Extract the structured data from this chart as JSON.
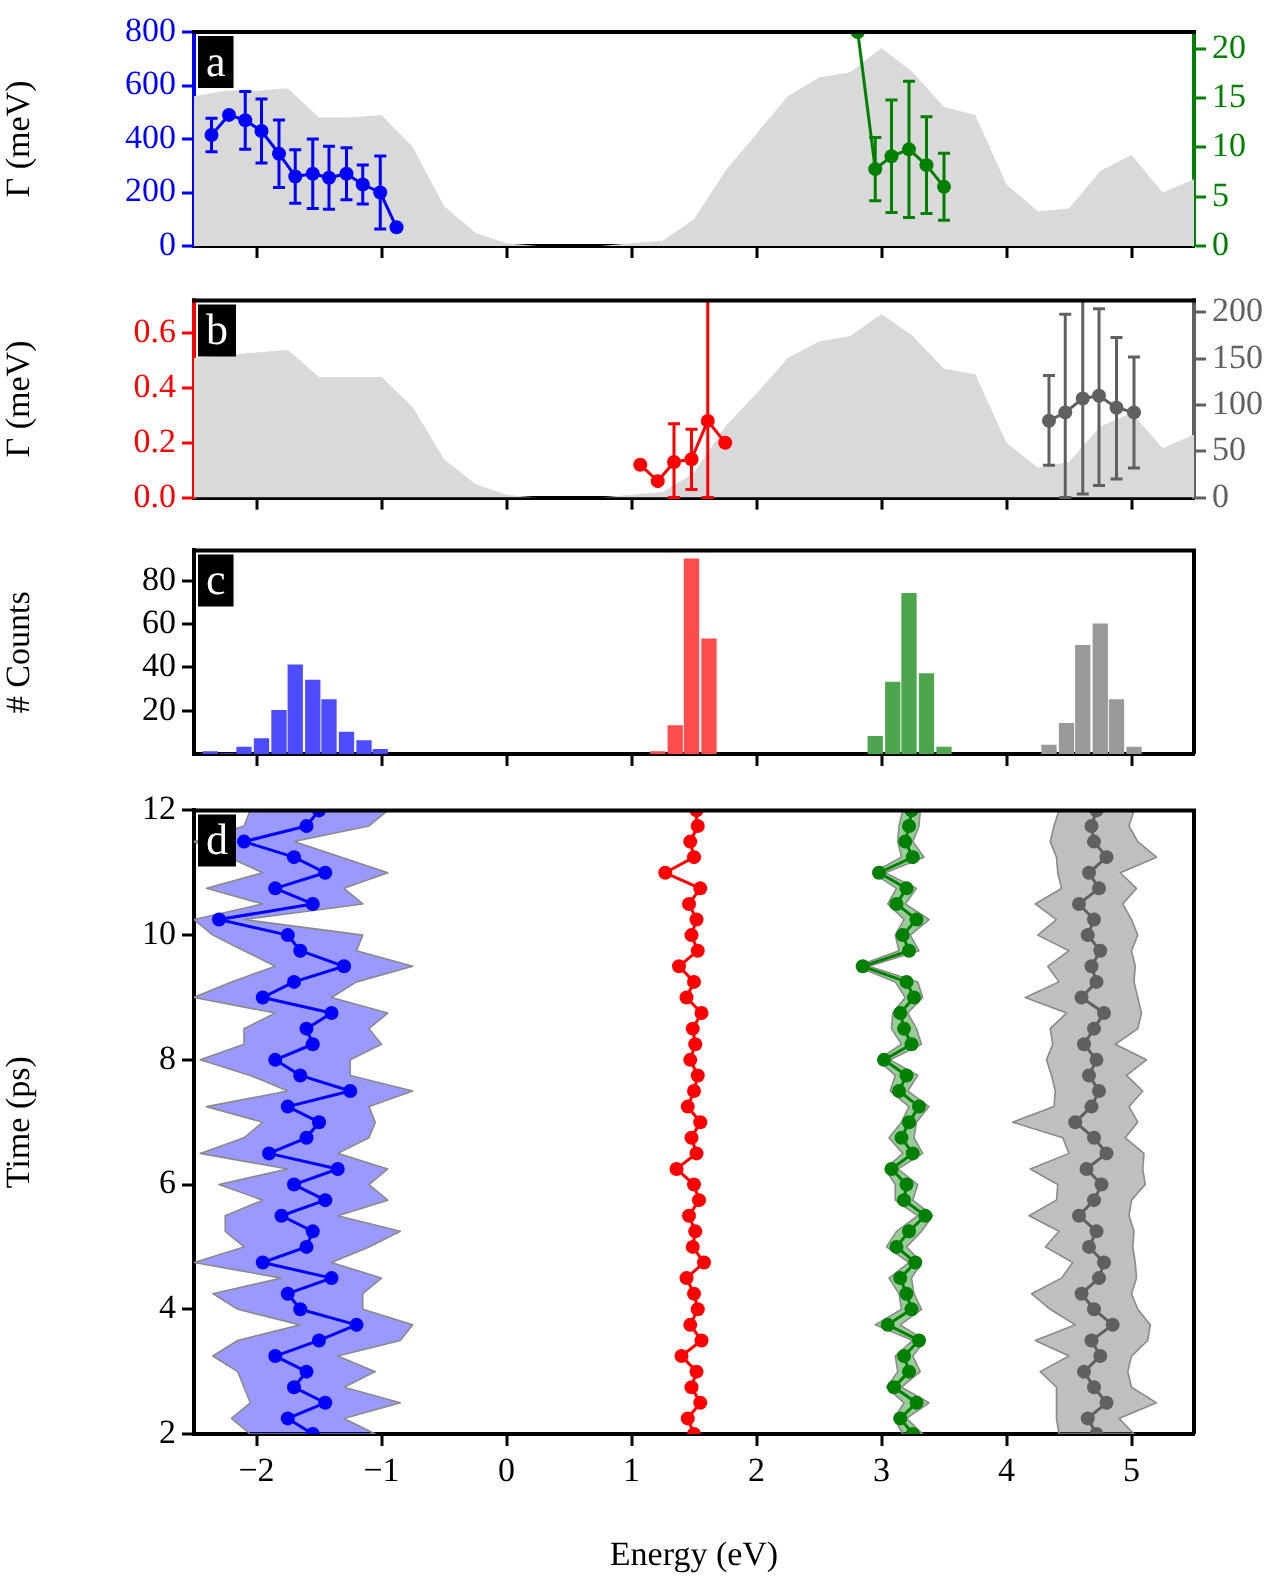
{
  "chart_data": [
    {
      "type": "line",
      "ylabel": "Γ (meV)",
      "annotations": [
        "a"
      ],
      "xlim": [
        -2.5,
        5.5
      ],
      "xticks": [
        -2,
        -1,
        0,
        1,
        2,
        3,
        4,
        5
      ],
      "ylim": [
        0,
        800
      ],
      "yticks": [
        0,
        200,
        400,
        600,
        800
      ],
      "y2lim": [
        0,
        21.7
      ],
      "y2ticks": [
        0,
        5,
        10,
        15,
        20
      ],
      "tick_labels": "y",
      "series": [
        {
          "type": "area",
          "color": "#d9d9d9",
          "x": [
            -2.5,
            -2.25,
            -2,
            -1.75,
            -1.5,
            -1.25,
            -1,
            -0.75,
            -0.5,
            -0.25,
            0,
            0.25,
            0.5,
            0.75,
            1,
            1.25,
            1.5,
            1.75,
            2,
            2.25,
            2.5,
            2.75,
            3,
            3.25,
            3.5,
            3.75,
            4,
            4.25,
            4.5,
            4.75,
            5,
            5.25,
            5.5
          ],
          "values": [
            560,
            580,
            580,
            590,
            480,
            480,
            490,
            370,
            150,
            50,
            10,
            0,
            0,
            0,
            10,
            20,
            100,
            280,
            420,
            560,
            630,
            650,
            740,
            650,
            520,
            490,
            230,
            130,
            140,
            280,
            340,
            200,
            250
          ]
        },
        {
          "color": "#0000ff",
          "marker": "circle",
          "x": [
            -2.36,
            -2.22,
            -2.09,
            -1.96,
            -1.82,
            -1.69,
            -1.55,
            -1.42,
            -1.28,
            -1.15,
            -1.01,
            -0.88
          ],
          "values": [
            415,
            490,
            470,
            430,
            345,
            260,
            270,
            255,
            270,
            230,
            200,
            70
          ],
          "errors": [
            63,
            null,
            108,
            120,
            126,
            100,
            130,
            118,
            97,
            73,
            136,
            null
          ]
        },
        {
          "color": "#008000",
          "marker": "circle",
          "axis": "y2",
          "x": [
            2.81,
            2.95,
            3.08,
            3.22,
            3.36,
            3.5
          ],
          "values": [
            21.7,
            7.8,
            9.1,
            9.8,
            8.2,
            6.0
          ],
          "errors": [
            null,
            3.2,
            5.7,
            6.9,
            4.9,
            3.4
          ]
        }
      ]
    },
    {
      "type": "line",
      "ylabel": "Γ (meV)",
      "annotations": [
        "b"
      ],
      "xlim": [
        -2.5,
        5.5
      ],
      "xticks": [
        -2,
        -1,
        0,
        1,
        2,
        3,
        4,
        5
      ],
      "ylim": [
        0,
        0.72
      ],
      "yticks": [
        {
          "value": 0,
          "label": "0.0"
        },
        {
          "value": 0.2,
          "label": "0.2"
        },
        {
          "value": 0.4,
          "label": "0.4"
        },
        {
          "value": 0.6,
          "label": "0.6"
        }
      ],
      "y2lim": [
        0,
        213
      ],
      "y2ticks": [
        0,
        50,
        100,
        150,
        200
      ],
      "tick_labels": "y",
      "series": [
        {
          "type": "area",
          "color": "#d9d9d9",
          "x": [
            -2.5,
            -2,
            -1.75,
            -1.5,
            -1.25,
            -1,
            -0.75,
            -0.5,
            -0.25,
            0,
            0.25,
            0.5,
            0.75,
            1,
            1.25,
            1.5,
            1.75,
            2,
            2.25,
            2.5,
            2.75,
            3,
            3.25,
            3.5,
            3.75,
            4,
            4.25,
            4.5,
            4.75,
            5,
            5.25,
            5.5
          ],
          "values": [
            0.51,
            0.53,
            0.54,
            0.44,
            0.44,
            0.44,
            0.33,
            0.14,
            0.05,
            0.01,
            0,
            0,
            0,
            0.01,
            0.02,
            0.09,
            0.26,
            0.38,
            0.51,
            0.57,
            0.59,
            0.67,
            0.59,
            0.47,
            0.45,
            0.2,
            0.11,
            0.13,
            0.26,
            0.31,
            0.18,
            0.23
          ]
        },
        {
          "color": "#ff0000",
          "marker": "circle",
          "x": [
            1.07,
            1.21,
            1.34,
            1.48,
            1.61,
            1.75
          ],
          "values": [
            0.12,
            0.06,
            0.13,
            0.14,
            0.28,
            0.2
          ],
          "errors": [
            null,
            null,
            [
              0,
              0.27
            ],
            [
              0.03,
              0.25
            ],
            [
              0,
              0.72
            ],
            null
          ]
        },
        {
          "color": "#606060",
          "marker": "circle",
          "axis": "y2",
          "x": [
            4.34,
            4.47,
            4.61,
            4.74,
            4.88,
            5.02
          ],
          "values": [
            83,
            92,
            107,
            110,
            97,
            92
          ],
          "errors": [
            [
              35,
              132
            ],
            [
              0,
              198
            ],
            [
              4,
              213
            ],
            [
              13,
              204
            ],
            [
              20,
              173
            ],
            [
              32,
              152
            ]
          ]
        }
      ]
    },
    {
      "type": "bar",
      "ylabel": "# Counts",
      "annotations": [
        "c"
      ],
      "xlim": [
        -2.5,
        5.5
      ],
      "xticks": [
        -2,
        -1,
        0,
        1,
        2,
        3,
        4,
        5
      ],
      "ylim": [
        0,
        94
      ],
      "yticks": [
        20,
        40,
        60,
        80
      ],
      "tick_labels": "y",
      "series": [
        {
          "color": "#4d4dff",
          "x": [
            -2.37,
            -2.23,
            -2.1,
            -1.96,
            -1.82,
            -1.69,
            -1.55,
            -1.42,
            -1.28,
            -1.14,
            -1.01
          ],
          "values": [
            1,
            0,
            3,
            7,
            20,
            41,
            34,
            25,
            10,
            6,
            2
          ]
        },
        {
          "color": "#ff4d4d",
          "x": [
            1.21,
            1.35,
            1.48,
            1.62
          ],
          "values": [
            1,
            13,
            90,
            53
          ]
        },
        {
          "color": "#4da64d",
          "x": [
            2.95,
            3.09,
            3.22,
            3.36,
            3.5
          ],
          "values": [
            8,
            33,
            74,
            37,
            3
          ]
        },
        {
          "color": "#999999",
          "x": [
            4.34,
            4.48,
            4.61,
            4.75,
            4.88,
            5.02
          ],
          "values": [
            4,
            14,
            50,
            60,
            25,
            3
          ]
        }
      ]
    },
    {
      "type": "line",
      "orientation": "horizontal",
      "xlabel": "Energy (eV)",
      "ylabel": "Time (ps)",
      "annotations": [
        "d"
      ],
      "xlim": [
        -2.5,
        5.5
      ],
      "xticks": [
        {
          "value": -2,
          "label": "−2"
        },
        {
          "value": -1,
          "label": "−1"
        },
        0,
        1,
        2,
        3,
        4,
        5
      ],
      "ylim": [
        2,
        12
      ],
      "yticks": [
        2,
        4,
        6,
        8,
        10,
        12
      ],
      "marker": "circle",
      "series": [
        {
          "color": "#0000ff",
          "x": [
            2,
            2.25,
            2.5,
            2.75,
            3,
            3.25,
            3.5,
            3.75,
            4,
            4.25,
            4.5,
            4.75,
            5,
            5.25,
            5.5,
            5.75,
            6,
            6.25,
            6.5,
            6.75,
            7,
            7.25,
            7.5,
            7.75,
            8,
            8.25,
            8.5,
            8.75,
            9,
            9.25,
            9.5,
            9.75,
            10,
            10.25,
            10.5,
            10.75,
            11,
            11.25,
            11.5,
            11.75,
            12
          ],
          "values": [
            -1.55,
            -1.75,
            -1.45,
            -1.7,
            -1.6,
            -1.85,
            -1.5,
            -1.2,
            -1.65,
            -1.75,
            -1.4,
            -1.95,
            -1.6,
            -1.55,
            -1.8,
            -1.45,
            -1.7,
            -1.35,
            -1.9,
            -1.6,
            -1.5,
            -1.75,
            -1.25,
            -1.65,
            -1.85,
            -1.55,
            -1.6,
            -1.4,
            -1.95,
            -1.7,
            -1.3,
            -1.65,
            -1.75,
            -2.3,
            -1.55,
            -1.85,
            -1.45,
            -1.7,
            -2.1,
            -1.6,
            -1.5
          ],
          "lower": [
            -2.05,
            -2.2,
            -2.05,
            -2.1,
            -2.15,
            -2.35,
            -2.15,
            -1.65,
            -2.15,
            -2.35,
            -1.8,
            -2.5,
            -2.1,
            -2.25,
            -2.25,
            -1.95,
            -2.3,
            -1.75,
            -2.45,
            -2.1,
            -1.95,
            -2.4,
            -1.75,
            -2.05,
            -2.45,
            -2.1,
            -2.1,
            -1.85,
            -2.5,
            -2.2,
            -1.85,
            -2.1,
            -2.35,
            -2.5,
            -1.95,
            -2.4,
            -1.95,
            null,
            -2.5,
            -2.1,
            -2.05
          ],
          "upper": [
            -1.05,
            -1.3,
            -0.85,
            -1.3,
            -1.05,
            -1.35,
            -0.85,
            -0.75,
            -1.15,
            -1.15,
            -1.0,
            -1.4,
            -1.1,
            -0.85,
            -1.35,
            -0.95,
            -1.1,
            -0.95,
            -1.35,
            -1.1,
            -1.05,
            -1.1,
            -0.75,
            -1.25,
            -1.25,
            -1.0,
            -1.1,
            -0.95,
            -1.4,
            -1.2,
            -0.75,
            -1.2,
            -1.15,
            -2.1,
            -1.15,
            -1.3,
            -0.95,
            null,
            -1.7,
            -1.1,
            -0.95
          ]
        },
        {
          "color": "#ff0000",
          "x": [
            2,
            2.25,
            2.5,
            2.75,
            3,
            3.25,
            3.5,
            3.75,
            4,
            4.25,
            4.5,
            4.75,
            5,
            5.25,
            5.5,
            5.75,
            6,
            6.25,
            6.5,
            6.75,
            7,
            7.25,
            7.5,
            7.75,
            8,
            8.25,
            8.5,
            8.75,
            9,
            9.25,
            9.5,
            9.75,
            10,
            10.25,
            10.5,
            10.75,
            11,
            11.25,
            11.5,
            11.75,
            12
          ],
          "values": [
            1.5,
            1.45,
            1.55,
            1.48,
            1.52,
            1.4,
            1.56,
            1.47,
            1.53,
            1.5,
            1.44,
            1.58,
            1.49,
            1.51,
            1.46,
            1.54,
            1.5,
            1.36,
            1.52,
            1.48,
            1.55,
            1.45,
            1.5,
            1.53,
            1.47,
            1.51,
            1.49,
            1.56,
            1.44,
            1.5,
            1.38,
            1.53,
            1.48,
            1.52,
            1.46,
            1.55,
            1.27,
            1.5,
            1.47,
            1.53,
            1.52
          ]
        },
        {
          "color": "#008000",
          "x": [
            2,
            2.25,
            2.5,
            2.75,
            3,
            3.25,
            3.5,
            3.75,
            4,
            4.25,
            4.5,
            4.75,
            5,
            5.25,
            5.5,
            5.75,
            6,
            6.25,
            6.5,
            6.75,
            7,
            7.25,
            7.5,
            7.75,
            8,
            8.25,
            8.5,
            8.75,
            9,
            9.25,
            9.5,
            9.75,
            10,
            10.25,
            10.5,
            10.75,
            11,
            11.25,
            11.5,
            11.75,
            12
          ],
          "values": [
            3.25,
            3.15,
            3.28,
            3.1,
            3.22,
            3.18,
            3.3,
            3.05,
            3.24,
            3.2,
            3.15,
            3.27,
            3.12,
            3.22,
            3.35,
            3.18,
            3.2,
            3.08,
            3.25,
            3.16,
            3.22,
            3.3,
            3.14,
            3.2,
            3.02,
            3.24,
            3.18,
            3.15,
            3.26,
            3.2,
            2.85,
            3.22,
            3.17,
            3.28,
            3.12,
            3.2,
            2.98,
            3.25,
            3.19,
            3.22,
            3.24
          ],
          "lower": [
            3.17,
            3.1,
            3.18,
            3.04,
            3.13,
            3.11,
            3.25,
            2.95,
            3.16,
            3.14,
            3.06,
            3.22,
            3.04,
            3.12,
            3.29,
            3.11,
            3.11,
            3.03,
            3.17,
            3.06,
            3.16,
            3.22,
            3.07,
            3.11,
            2.97,
            3.16,
            3.08,
            3.09,
            3.19,
            3.11,
            2.8,
            3.14,
            3.11,
            3.18,
            3.05,
            3.12,
            2.93,
            3.16,
            3.13,
            3.14,
            3.17
          ],
          "upper": [
            3.33,
            3.2,
            3.38,
            3.16,
            3.31,
            3.25,
            3.35,
            3.15,
            3.32,
            3.26,
            3.24,
            3.32,
            3.2,
            3.32,
            3.41,
            3.25,
            3.29,
            3.13,
            3.33,
            3.26,
            3.28,
            3.38,
            3.21,
            3.29,
            3.07,
            3.32,
            3.28,
            3.21,
            3.33,
            3.29,
            2.9,
            3.3,
            3.23,
            3.38,
            3.19,
            3.28,
            3.03,
            3.34,
            3.25,
            3.3,
            3.31
          ]
        },
        {
          "color": "#606060",
          "x": [
            2,
            2.25,
            2.5,
            2.75,
            3,
            3.25,
            3.5,
            3.75,
            4,
            4.25,
            4.5,
            4.75,
            5,
            5.25,
            5.5,
            5.75,
            6,
            6.25,
            6.5,
            6.75,
            7,
            7.25,
            7.5,
            7.75,
            8,
            8.25,
            8.5,
            8.75,
            9,
            9.25,
            9.5,
            9.75,
            10,
            10.25,
            10.5,
            10.75,
            11,
            11.25,
            11.5,
            11.75,
            12
          ],
          "values": [
            4.72,
            4.65,
            4.8,
            4.7,
            4.62,
            4.75,
            4.68,
            4.85,
            4.7,
            4.6,
            4.74,
            4.78,
            4.66,
            4.72,
            4.58,
            4.7,
            4.76,
            4.64,
            4.8,
            4.7,
            4.55,
            4.68,
            4.74,
            4.66,
            4.72,
            4.62,
            4.7,
            4.78,
            4.6,
            4.72,
            4.68,
            4.75,
            4.65,
            4.7,
            4.58,
            4.74,
            4.66,
            4.8,
            4.7,
            4.68,
            4.72
          ],
          "lower": [
            4.42,
            4.4,
            4.4,
            4.4,
            4.27,
            4.5,
            4.23,
            4.55,
            4.35,
            4.2,
            4.44,
            4.53,
            4.31,
            4.42,
            4.18,
            4.4,
            4.41,
            4.19,
            4.5,
            4.45,
            4.05,
            4.38,
            4.39,
            4.36,
            4.32,
            4.37,
            4.35,
            4.48,
            4.15,
            4.42,
            4.33,
            4.5,
            4.25,
            4.4,
            4.23,
            4.44,
            4.41,
            4.4,
            4.35,
            4.38,
            4.42
          ],
          "upper": [
            5.02,
            4.9,
            5.2,
            5.0,
            4.97,
            5.0,
            5.13,
            5.15,
            5.05,
            5.0,
            5.04,
            5.03,
            5.01,
            5.02,
            4.98,
            5.0,
            5.11,
            5.09,
            5.1,
            4.95,
            5.05,
            4.98,
            5.09,
            4.96,
            5.12,
            4.87,
            5.05,
            5.08,
            5.05,
            5.02,
            5.03,
            5.0,
            5.05,
            5.0,
            4.93,
            5.04,
            4.91,
            5.2,
            5.05,
            4.98,
            5.02
          ]
        }
      ]
    }
  ]
}
